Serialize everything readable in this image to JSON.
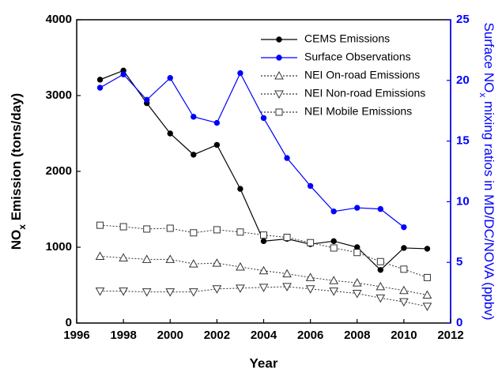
{
  "chart_data": {
    "type": "line",
    "x_label": "Year",
    "y_label": [
      "NO",
      "x",
      " Emission (tons/day)"
    ],
    "y2_label": [
      "Surface NO",
      "x",
      " mixing ratios in MD/DC/NOVA (ppbv)"
    ],
    "xlim": [
      1996,
      2012
    ],
    "xticks": [
      1996,
      1998,
      2000,
      2002,
      2004,
      2006,
      2008,
      2010,
      2012
    ],
    "ylim": [
      0,
      4000
    ],
    "yticks": [
      0,
      1000,
      2000,
      3000,
      4000
    ],
    "y2lim": [
      0,
      25
    ],
    "y2ticks": [
      0,
      5,
      10,
      15,
      20,
      25
    ],
    "y2_color": "#0000ff",
    "legend": "upper right",
    "series": [
      {
        "name": "CEMS Emissions",
        "color": "#000000",
        "marker": "circle",
        "filled": true,
        "dash": false,
        "x": [
          1997,
          1998,
          1999,
          2000,
          2001,
          2002,
          2003,
          2004,
          2005,
          2006,
          2007,
          2008,
          2009,
          2010,
          2011
        ],
        "values": [
          3210,
          3330,
          2900,
          2500,
          2220,
          2350,
          1770,
          1080,
          1110,
          1040,
          1080,
          1000,
          700,
          990,
          980
        ]
      },
      {
        "name": "Surface Observations",
        "color": "#0000ff",
        "marker": "circle",
        "filled": true,
        "dash": false,
        "axis": "y2",
        "x": [
          1997,
          1998,
          1999,
          2000,
          2001,
          2002,
          2003,
          2004,
          2005,
          2006,
          2007,
          2008,
          2009,
          2010
        ],
        "values": [
          19.4,
          20.5,
          18.4,
          20.2,
          17.0,
          16.5,
          20.6,
          16.9,
          13.6,
          11.3,
          9.2,
          9.5,
          9.4,
          7.9
        ]
      },
      {
        "name": "NEI On-road Emissions",
        "color": "#333333",
        "marker": "triangle-up",
        "filled": false,
        "dash": true,
        "x": [
          1997,
          1998,
          1999,
          2000,
          2001,
          2002,
          2003,
          2004,
          2005,
          2006,
          2007,
          2008,
          2009,
          2010,
          2011
        ],
        "values": [
          880,
          860,
          840,
          840,
          780,
          790,
          740,
          690,
          650,
          600,
          560,
          530,
          480,
          430,
          370
        ]
      },
      {
        "name": "NEI Non-road Emissions",
        "color": "#333333",
        "marker": "triangle-down",
        "filled": false,
        "dash": true,
        "x": [
          1997,
          1998,
          1999,
          2000,
          2001,
          2002,
          2003,
          2004,
          2005,
          2006,
          2007,
          2008,
          2009,
          2010,
          2011
        ],
        "values": [
          420,
          420,
          410,
          410,
          410,
          450,
          460,
          470,
          480,
          450,
          420,
          390,
          330,
          280,
          220
        ]
      },
      {
        "name": "NEI Mobile Emissions",
        "color": "#333333",
        "marker": "square",
        "filled": false,
        "dash": true,
        "x": [
          1997,
          1998,
          1999,
          2000,
          2001,
          2002,
          2003,
          2004,
          2005,
          2006,
          2007,
          2008,
          2009,
          2010,
          2011
        ],
        "values": [
          1290,
          1270,
          1240,
          1250,
          1190,
          1230,
          1200,
          1160,
          1130,
          1060,
          990,
          930,
          810,
          710,
          600
        ]
      }
    ]
  }
}
